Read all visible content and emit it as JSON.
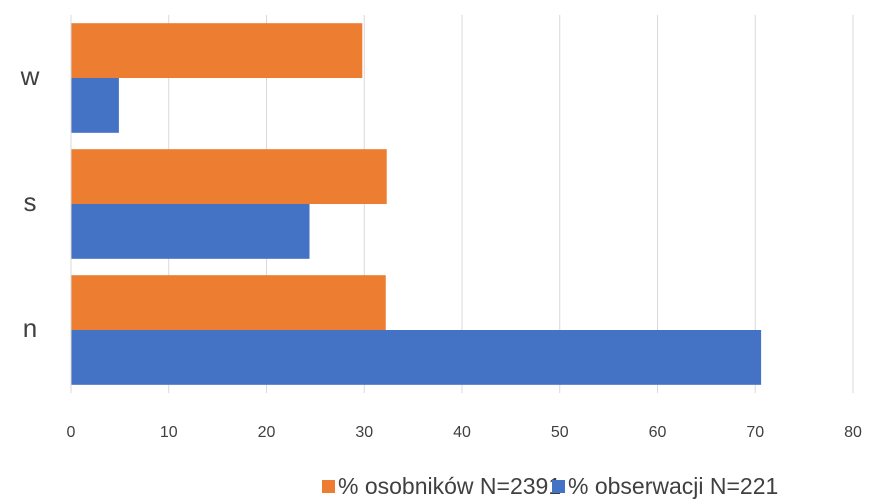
{
  "chart_data": {
    "type": "bar",
    "orientation": "horizontal",
    "categories": [
      "w",
      "s",
      "n"
    ],
    "series": [
      {
        "name": "% osobników N=2391",
        "color": "#ed7d31",
        "values": [
          29.8,
          32.3,
          32.2
        ]
      },
      {
        "name": "% obserwacji N=221",
        "color": "#4472c4",
        "values": [
          4.9,
          24.4,
          70.6
        ]
      }
    ],
    "xlim": [
      0,
      80
    ],
    "xticks": [
      0,
      10,
      20,
      30,
      40,
      50,
      60,
      70,
      80
    ],
    "grid": true,
    "legend": "bottom"
  }
}
